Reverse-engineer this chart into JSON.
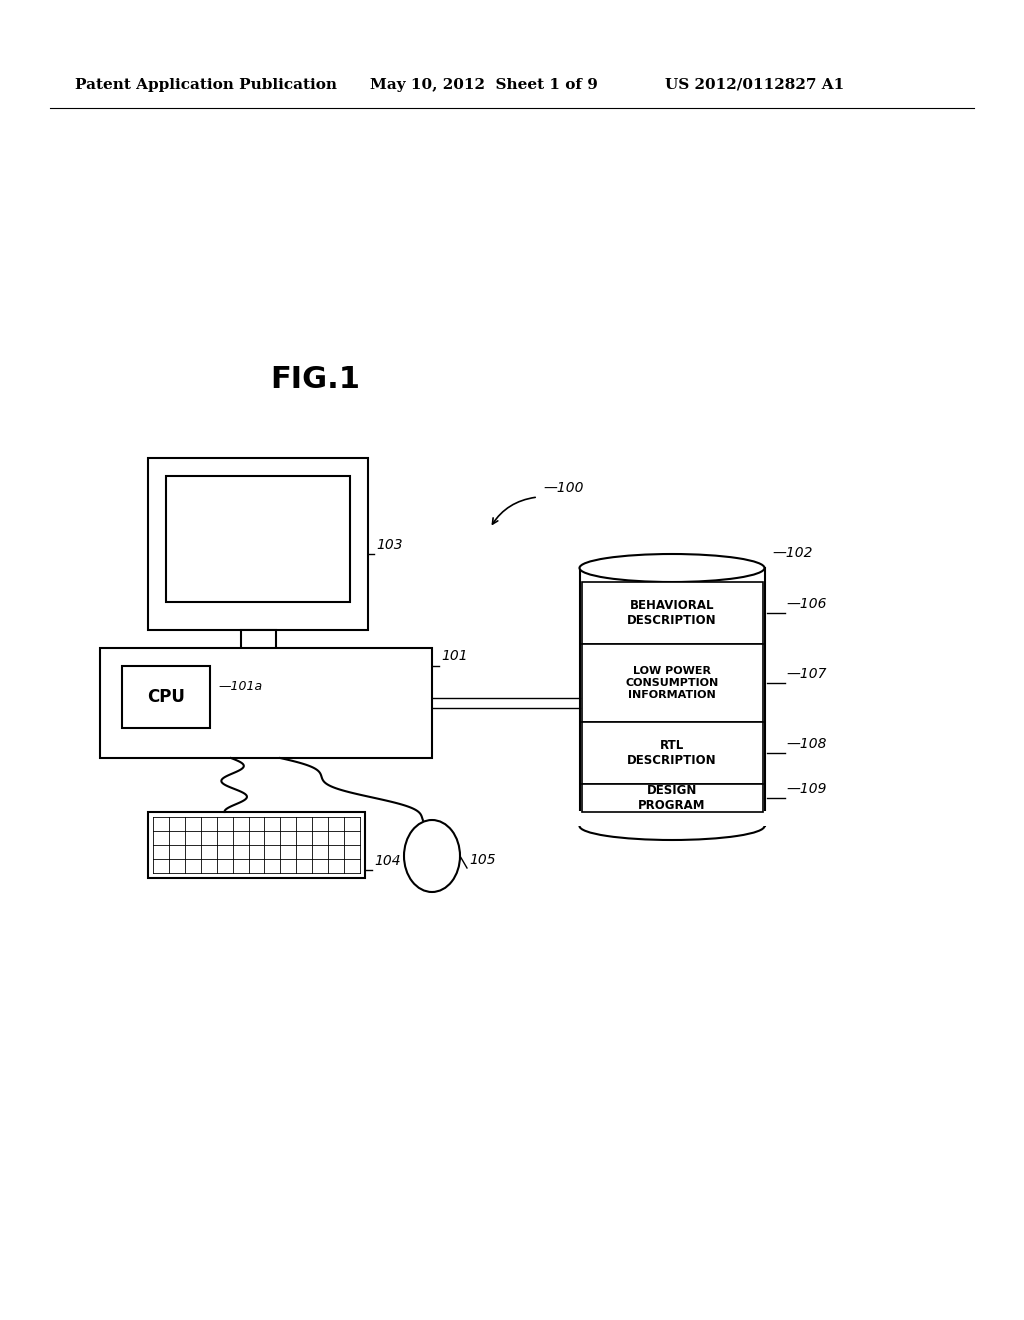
{
  "bg_color": "#ffffff",
  "header_left": "Patent Application Publication",
  "header_mid": "May 10, 2012  Sheet 1 of 9",
  "header_right": "US 2012/0112827 A1",
  "fig_title": "FIG.1",
  "label_100": "100",
  "label_101": "101",
  "label_101a": "101a",
  "label_102": "102",
  "label_103": "103",
  "label_104": "104",
  "label_105": "105",
  "label_106": "106",
  "label_107": "107",
  "label_108": "108",
  "label_109": "109"
}
